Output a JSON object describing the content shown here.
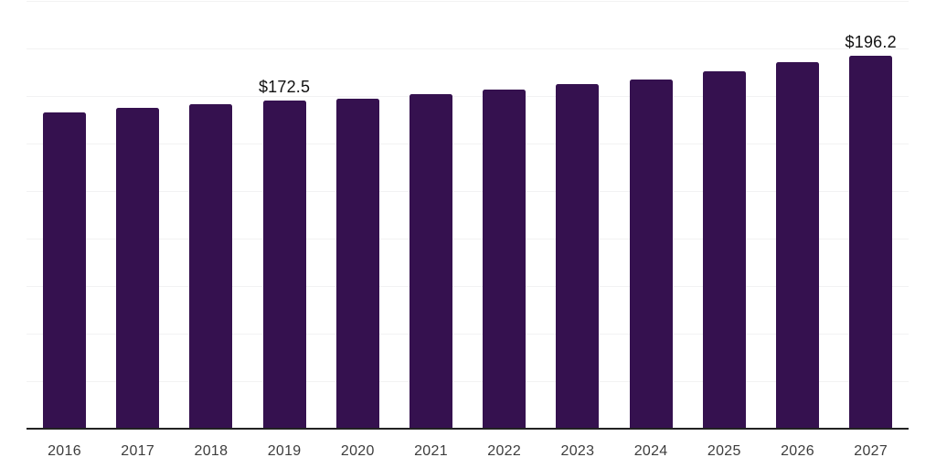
{
  "chart_data": {
    "type": "bar",
    "title": "",
    "xlabel": "",
    "ylabel": "",
    "categories": [
      "2016",
      "2017",
      "2018",
      "2019",
      "2020",
      "2021",
      "2022",
      "2023",
      "2024",
      "2025",
      "2026",
      "2027"
    ],
    "values": [
      166.5,
      168.8,
      170.7,
      172.5,
      173.5,
      175.8,
      178.5,
      181.4,
      183.8,
      188.1,
      192.6,
      196.2
    ],
    "point_labels": [
      null,
      null,
      null,
      "$172.5",
      null,
      null,
      null,
      null,
      null,
      null,
      null,
      "$196.2"
    ],
    "ylim": [
      0,
      225
    ],
    "grid_step": 25,
    "grid": "horizontal",
    "legend": "none",
    "y_axis_tick_labels_visible": false
  },
  "colors": {
    "bar": "#35114F",
    "gridline": "#f2f2f3",
    "axis_line": "#222222",
    "tick_label": "#3d3d3d",
    "point_label": "#111111",
    "background": "#ffffff"
  }
}
